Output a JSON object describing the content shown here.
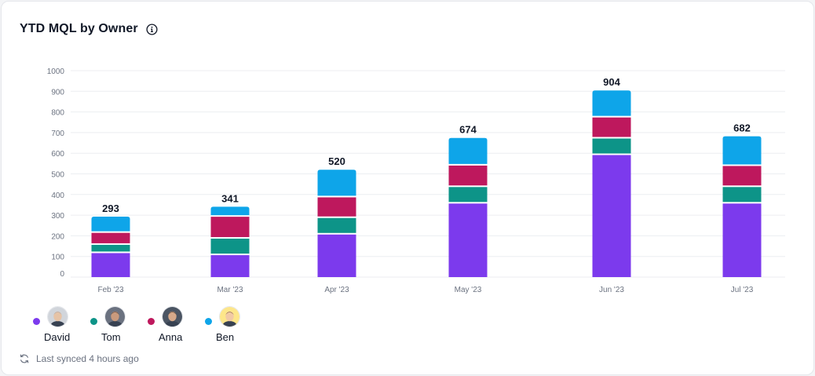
{
  "card": {
    "title": "YTD MQL by Owner",
    "footer_text": "Last synced 4 hours ago"
  },
  "icons": {
    "info": "info-circle-icon",
    "sync": "refresh-icon"
  },
  "colors": {
    "David": "#7c3aed",
    "Tom": "#0d9488",
    "Anna": "#be185d",
    "Ben": "#0ea5e9"
  },
  "legend": [
    {
      "name": "David",
      "color": "#7c3aed"
    },
    {
      "name": "Tom",
      "color": "#0d9488"
    },
    {
      "name": "Anna",
      "color": "#be185d"
    },
    {
      "name": "Ben",
      "color": "#0ea5e9"
    }
  ],
  "chart_data": {
    "type": "bar",
    "stacked": true,
    "categories": [
      "Feb '23",
      "Mar '23",
      "Apr '23",
      "May '23",
      "Jun '23",
      "Jul '23"
    ],
    "series": [
      {
        "name": "David",
        "values": [
          120,
          110,
          210,
          360,
          595,
          360
        ]
      },
      {
        "name": "Tom",
        "values": [
          40,
          80,
          80,
          80,
          80,
          80
        ]
      },
      {
        "name": "Anna",
        "values": [
          58,
          106,
          100,
          104,
          102,
          102
        ]
      },
      {
        "name": "Ben",
        "values": [
          75,
          45,
          130,
          130,
          127,
          140
        ]
      }
    ],
    "totals": [
      293,
      341,
      520,
      674,
      904,
      682
    ],
    "yticks": [
      0,
      100,
      200,
      300,
      400,
      500,
      600,
      700,
      800,
      900,
      1000
    ],
    "ylim": [
      0,
      1000
    ],
    "grid": true,
    "legend_position": "bottom-left"
  }
}
